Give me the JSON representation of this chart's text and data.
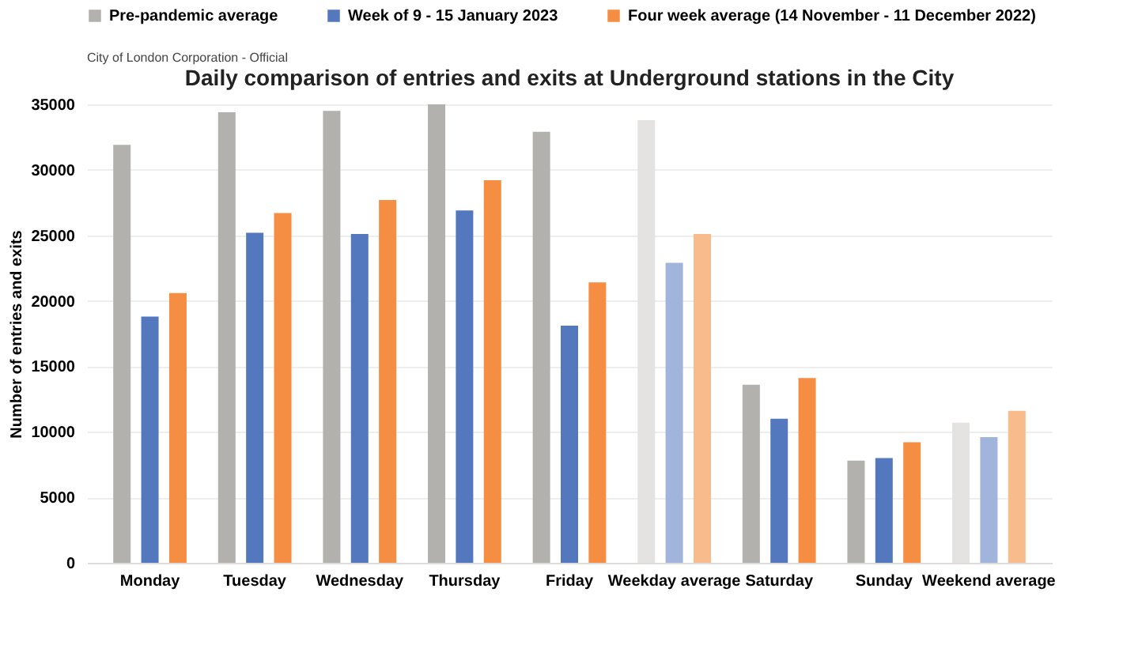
{
  "chart_data": {
    "type": "bar",
    "title": "Daily comparison of entries and exits at Underground stations in the City",
    "ylabel": "Number of entries and exits",
    "annotations": [
      "City of London Corporation - Official"
    ],
    "categories": [
      "Monday",
      "Tuesday",
      "Wednesday",
      "Thursday",
      "Friday",
      "Weekday average",
      "Saturday",
      "Sunday",
      "Weekend average"
    ],
    "series": [
      {
        "name": "Pre-pandemic average",
        "color": "#b3b1ae",
        "colors": [
          "#b3b1ae",
          "#b3b1ae",
          "#b3b1ae",
          "#b3b1ae",
          "#b3b1ae",
          "#e4e3e1",
          "#b3b1ae",
          "#b3b1ae",
          "#e4e3e1"
        ],
        "values": [
          31900,
          34400,
          34500,
          35000,
          32900,
          33800,
          13600,
          7800,
          10700
        ]
      },
      {
        "name": "Week of 9 - 15 January 2023",
        "color": "#5478be",
        "colors": [
          "#5478be",
          "#5478be",
          "#5478be",
          "#5478be",
          "#5478be",
          "#a0b4dc",
          "#5478be",
          "#5478be",
          "#a0b4dc"
        ],
        "values": [
          18800,
          25200,
          25100,
          26900,
          18100,
          22900,
          11000,
          8000,
          9600
        ]
      },
      {
        "name": "Four week average (14 November - 11 December 2022)",
        "color": "#f58d43",
        "colors": [
          "#f58d43",
          "#f58d43",
          "#f58d43",
          "#f58d43",
          "#f58d43",
          "#f8bb8c",
          "#f58d43",
          "#f58d43",
          "#f8bb8c"
        ],
        "values": [
          20600,
          26700,
          27700,
          29200,
          21400,
          25100,
          14100,
          9200,
          11600
        ]
      }
    ],
    "ylim": [
      0,
      35000
    ],
    "yticks": [
      0,
      5000,
      10000,
      15000,
      20000,
      25000,
      30000,
      35000
    ],
    "grid": "y",
    "legend": "top"
  }
}
